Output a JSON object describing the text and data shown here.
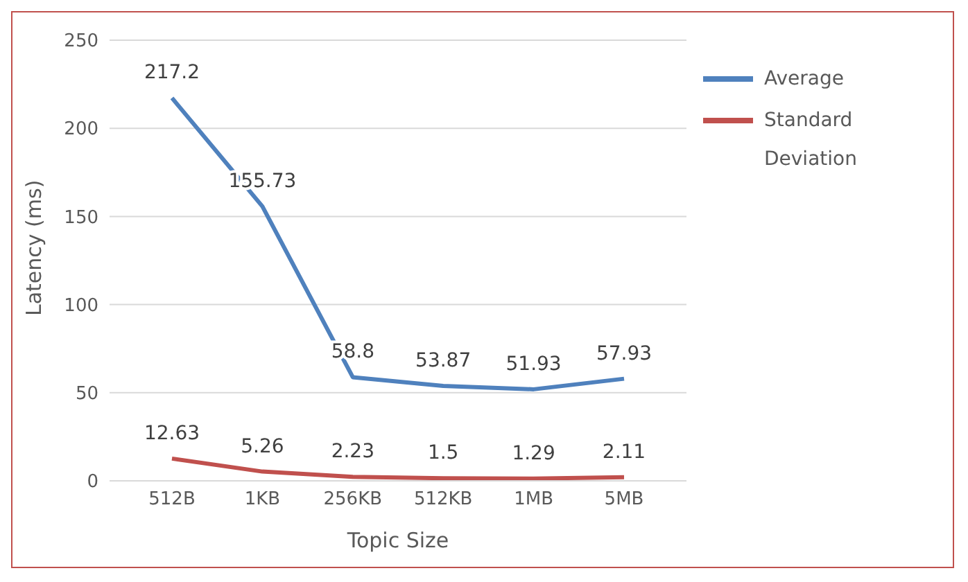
{
  "chart_data": {
    "type": "line",
    "xlabel": "Topic Size",
    "ylabel": "Latency (ms)",
    "categories": [
      "512B",
      "1KB",
      "256KB",
      "512KB",
      "1MB",
      "5MB"
    ],
    "series": [
      {
        "name": "Average",
        "color": "#4f81bd",
        "values": [
          217.2,
          155.73,
          58.8,
          53.87,
          51.93,
          57.93
        ]
      },
      {
        "name": "Standard Deviation",
        "color": "#c0504d",
        "values": [
          12.63,
          5.26,
          2.23,
          1.5,
          1.29,
          2.11
        ]
      }
    ],
    "ylim": [
      0,
      250
    ],
    "yticks": [
      0,
      50,
      100,
      150,
      200,
      250
    ],
    "grid": "y",
    "legend": "top right",
    "marker": "none",
    "line_style": "solid",
    "data_labels": true
  }
}
